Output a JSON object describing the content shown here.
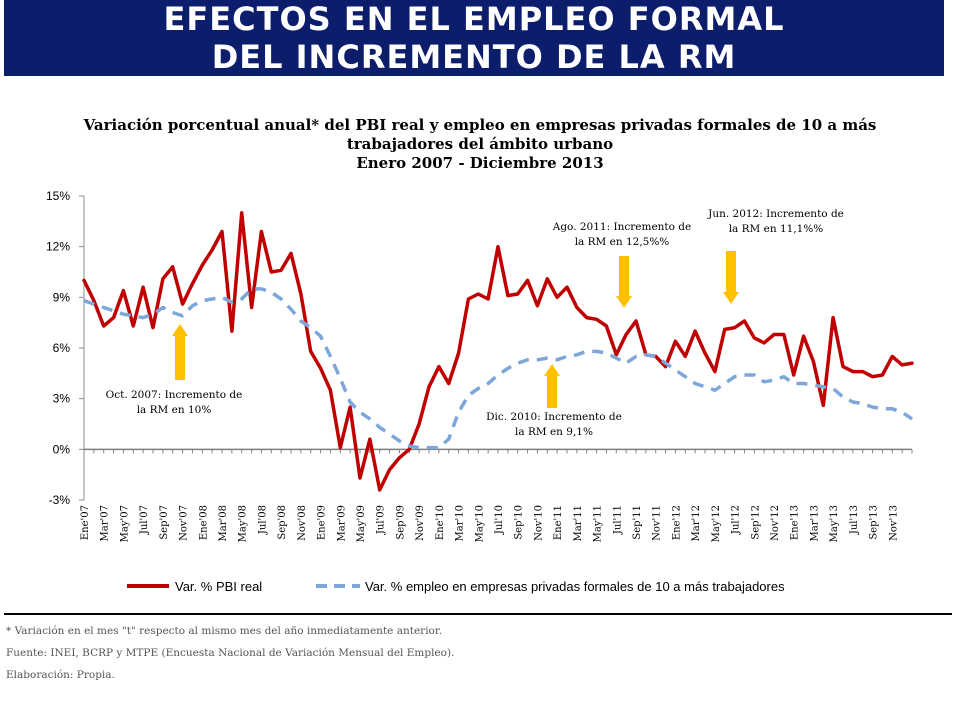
{
  "banner": {
    "title": "EFECTOS EN EL EMPLEO FORMAL DEL INCREMENTO DE LA RM"
  },
  "colors": {
    "banner_bg": "#0c1d6b",
    "pbi_line": "#c00000",
    "employment_line": "#7da7d9",
    "arrow": "#ffc000",
    "baseline": "#7f7f7f"
  },
  "chart_data": {
    "type": "line",
    "title_lines": [
      "Variación porcentual anual* del PBI real y empleo en empresas privadas formales de 10 a más",
      "trabajadores del ámbito urbano",
      "Enero 2007 - Diciembre 2013"
    ],
    "xlabel": "",
    "ylabel": "",
    "ylim": [
      -3,
      15
    ],
    "yticks": [
      "15%",
      "12%",
      "9%",
      "6%",
      "3%",
      "0%",
      "-3%"
    ],
    "ytick_values": [
      15,
      12,
      9,
      6,
      3,
      0,
      -3
    ],
    "grid": false,
    "legend_position": "bottom",
    "x_tick_labels": [
      "Ene'07",
      "Mar'07",
      "May'07",
      "Jul'07",
      "Sep'07",
      "Nov'07",
      "Ene'08",
      "Mar'08",
      "May'08",
      "Jul'08",
      "Sep'08",
      "Nov'08",
      "Ene'09",
      "Mar'09",
      "May'09",
      "Jul'09",
      "Sep'09",
      "Nov'09",
      "Ene'10",
      "Mar'10",
      "May'10",
      "Jul'10",
      "Sep'10",
      "Nov'10",
      "Ene'11",
      "Mar'11",
      "May'11",
      "Jul'11",
      "Sep'11",
      "Nov'11",
      "Ene'12",
      "Mar'12",
      "May'12",
      "Jul'12",
      "Sep'12",
      "Nov'12",
      "Ene'13",
      "Mar'13",
      "May'13",
      "Jul'13",
      "Sep'13",
      "Nov'13"
    ],
    "series": [
      {
        "name": "Var. % PBI real",
        "style": "solid",
        "values": [
          10.0,
          8.8,
          7.3,
          7.8,
          9.4,
          7.3,
          9.6,
          7.2,
          10.1,
          10.8,
          8.6,
          9.8,
          10.9,
          11.8,
          12.9,
          7.0,
          14.0,
          8.4,
          12.9,
          10.5,
          10.6,
          11.6,
          9.2,
          5.8,
          4.8,
          3.5,
          0.1,
          2.5,
          -1.7,
          0.6,
          -2.4,
          -1.2,
          -0.5,
          0.0,
          1.5,
          3.7,
          4.9,
          3.9,
          5.7,
          8.9,
          9.2,
          8.9,
          12.0,
          9.1,
          9.2,
          10.0,
          8.5,
          10.1,
          9.0,
          9.6,
          8.4,
          7.8,
          7.7,
          7.3,
          5.6,
          6.8,
          7.6,
          5.6,
          5.5,
          4.9,
          6.4,
          5.5,
          7.0,
          5.7,
          4.6,
          7.1,
          7.2,
          7.6,
          6.6,
          6.3,
          6.8,
          6.8,
          4.4,
          6.7,
          5.2,
          2.6,
          7.8,
          4.9,
          4.6,
          4.6,
          4.3,
          4.4,
          5.5,
          5.0,
          5.1
        ]
      },
      {
        "name": "Var. % empleo en empresas privadas formales de 10 a más trabajadores",
        "style": "dashed",
        "values": [
          8.8,
          8.6,
          8.4,
          8.2,
          8.0,
          7.9,
          7.8,
          8.0,
          8.4,
          8.1,
          7.9,
          8.5,
          8.8,
          8.9,
          9.0,
          8.7,
          8.9,
          9.5,
          9.5,
          9.3,
          8.9,
          8.3,
          7.6,
          7.2,
          6.7,
          5.5,
          4.2,
          2.8,
          2.2,
          1.8,
          1.3,
          0.9,
          0.5,
          0.2,
          0.1,
          0.1,
          0.1,
          0.6,
          2.2,
          3.2,
          3.6,
          3.9,
          4.4,
          4.8,
          5.1,
          5.3,
          5.3,
          5.4,
          5.3,
          5.5,
          5.6,
          5.8,
          5.8,
          5.7,
          5.4,
          5.1,
          5.5,
          5.6,
          5.5,
          5.1,
          4.7,
          4.3,
          3.9,
          3.7,
          3.5,
          3.9,
          4.3,
          4.4,
          4.4,
          4.0,
          4.1,
          4.3,
          3.9,
          3.9,
          3.8,
          3.7,
          3.6,
          3.1,
          2.8,
          2.7,
          2.5,
          2.4,
          2.4,
          2.2,
          1.8
        ]
      }
    ],
    "annotations": [
      {
        "lines": [
          "Oct. 2007: Incremento de",
          "la RM en 10%"
        ],
        "x_index": 9,
        "arrow_direction": "up"
      },
      {
        "lines": [
          "Dic. 2010: Incremento de",
          "la RM en 9,1%"
        ],
        "x_index": 47,
        "arrow_direction": "up"
      },
      {
        "lines": [
          "Ago. 2011: Incremento de",
          "la RM en 12,5%%"
        ],
        "x_index": 55,
        "arrow_direction": "down"
      },
      {
        "lines": [
          "Jun. 2012: Incremento de",
          "la RM en 11,1%%"
        ],
        "x_index": 65,
        "arrow_direction": "down"
      }
    ]
  },
  "footnotes": [
    "* Variación en el mes \"t\" respecto al mismo mes del año inmediatamente anterior.",
    "Fuente: INEI, BCRP y MTPE (Encuesta Nacional de Variación Mensual del Empleo).",
    "Elaboración: Propia."
  ]
}
